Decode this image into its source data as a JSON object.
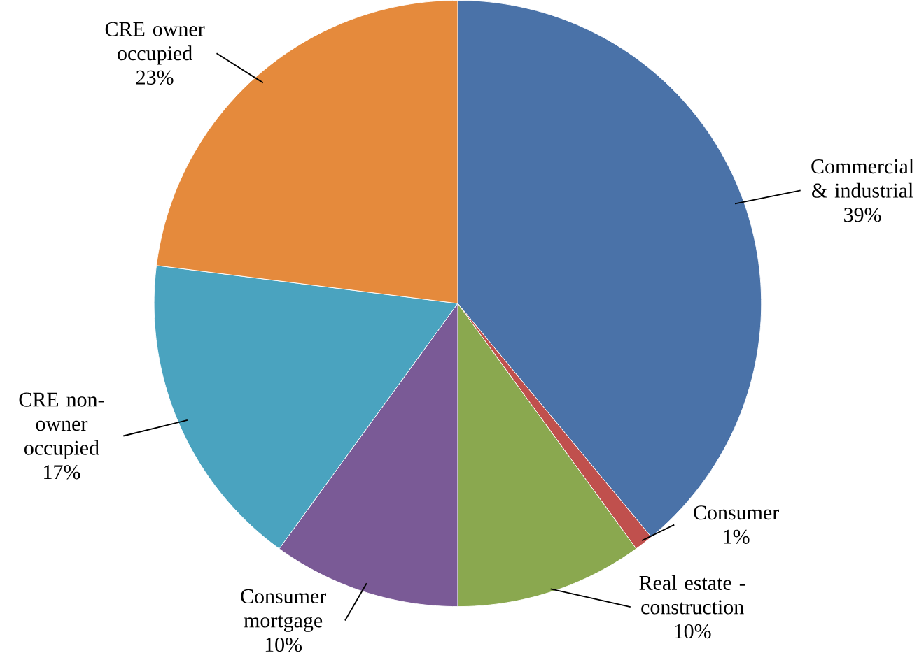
{
  "chart_data": {
    "type": "pie",
    "categories": [
      "Commercial & industrial",
      "Consumer",
      "Real estate - construction",
      "Consumer mortgage",
      "CRE non-owner occupied",
      "CRE owner occupied"
    ],
    "values": [
      39,
      1,
      10,
      10,
      17,
      23
    ],
    "value_labels": [
      "39%",
      "1%",
      "10%",
      "10%",
      "17%",
      "23%"
    ],
    "colors": [
      "#4a72a8",
      "#c0504d",
      "#8aa84f",
      "#7a5a96",
      "#4aa3bf",
      "#e58a3c"
    ]
  }
}
